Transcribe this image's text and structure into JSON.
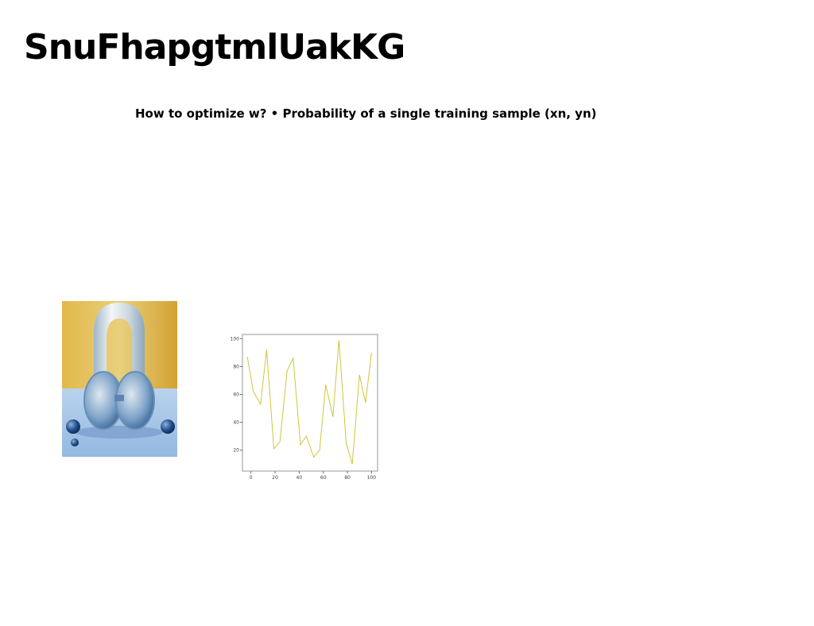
{
  "page": {
    "title": "SnuFhapgtmlUakKG",
    "subtitle": "How to optimize w? • Probability of a single training sample (xn, yn)"
  },
  "figure": {
    "icon": "glass-arch-object-photo",
    "colors": {
      "background": "#d8ab3c",
      "table": "#a9c8e8",
      "glass": "#3a6fae"
    }
  },
  "chart_data": {
    "type": "line",
    "title": "",
    "xlabel": "",
    "ylabel": "",
    "xlim": [
      -7,
      105
    ],
    "ylim": [
      5,
      103
    ],
    "xticks": [
      0,
      20,
      40,
      60,
      80,
      100
    ],
    "yticks": [
      20,
      40,
      60,
      80,
      100
    ],
    "grid": false,
    "color": "#cdc73a",
    "x": [
      -3,
      2,
      8,
      13,
      19,
      24,
      30,
      35,
      41,
      46,
      52,
      57,
      62,
      68,
      73,
      79,
      84,
      90,
      95,
      100
    ],
    "y": [
      87,
      62,
      53,
      92,
      21,
      26,
      77,
      86,
      24,
      30,
      15,
      20,
      67,
      44,
      99,
      25,
      10,
      74,
      54,
      90
    ]
  }
}
